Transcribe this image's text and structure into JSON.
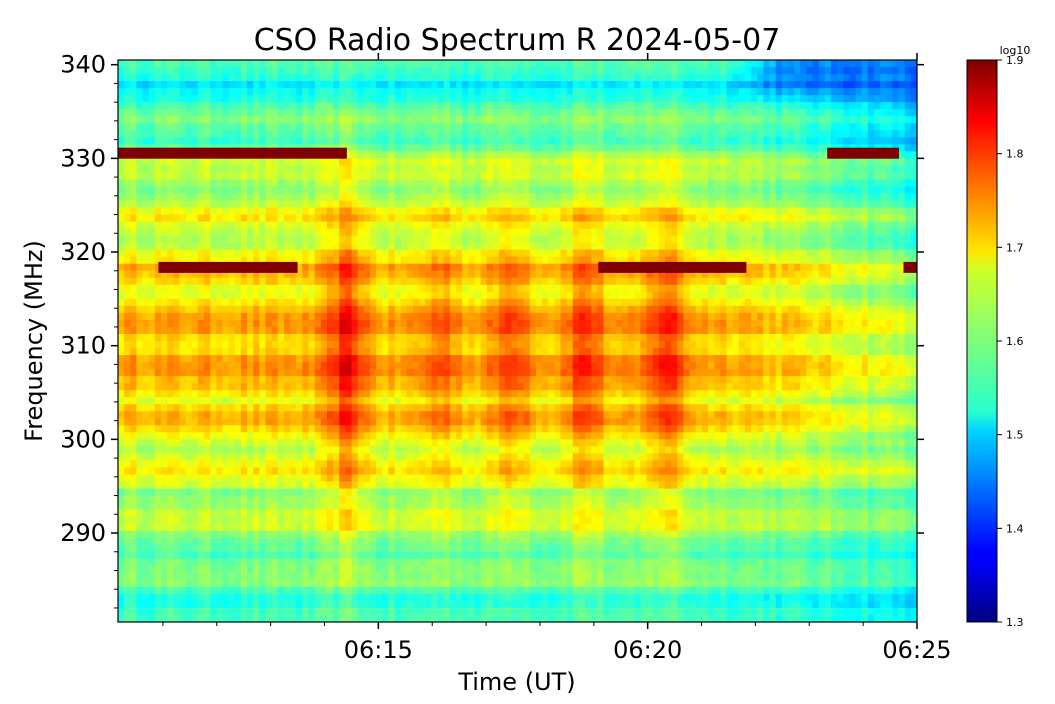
{
  "chart_data": {
    "type": "heatmap",
    "title": "CSO Radio Spectrum R 2024-05-07",
    "xlabel": "Time (UT)",
    "ylabel": "Frequency (MHz)",
    "xlim": [
      "06:10:10",
      "06:25:00"
    ],
    "ylim": [
      280.5,
      340.5
    ],
    "x_ticks": [
      "06:15",
      "06:20",
      "06:25"
    ],
    "y_ticks": [
      290,
      300,
      310,
      320,
      330,
      340
    ],
    "colorbar": {
      "label": "log10",
      "range": [
        1.3,
        1.9
      ],
      "ticks": [
        "1.3",
        "1.4",
        "1.5",
        "1.6",
        "1.7",
        "1.8",
        "1.9"
      ],
      "colormap": "jet"
    },
    "features": {
      "burst_columns": [
        {
          "time": "06:14:25",
          "peak_log10": 1.82
        },
        {
          "time": "06:17:30",
          "peak_log10": 1.79
        },
        {
          "time": "06:18:50",
          "peak_log10": 1.8
        },
        {
          "time": "06:20:20",
          "peak_log10": 1.81
        },
        {
          "time": "06:16:10",
          "peak_log10": 1.77
        }
      ],
      "low_intensity_patch": {
        "time_start": "06:21:30",
        "time_end": "06:25:00",
        "freq_min": 336,
        "freq_max": 340.5,
        "log10": 1.44
      },
      "saturated_bands": [
        {
          "freq": 330.5,
          "time_start": "06:10:10",
          "time_end": "06:14:25"
        },
        {
          "freq": 330.5,
          "time_start": "06:23:20",
          "time_end": "06:24:40"
        },
        {
          "freq": 318.3,
          "time_start": "06:10:55",
          "time_end": "06:13:30"
        },
        {
          "freq": 318.3,
          "time_start": "06:19:05",
          "time_end": "06:21:50"
        },
        {
          "freq": 318.3,
          "time_start": "06:24:45",
          "time_end": "06:25:00"
        }
      ]
    }
  }
}
